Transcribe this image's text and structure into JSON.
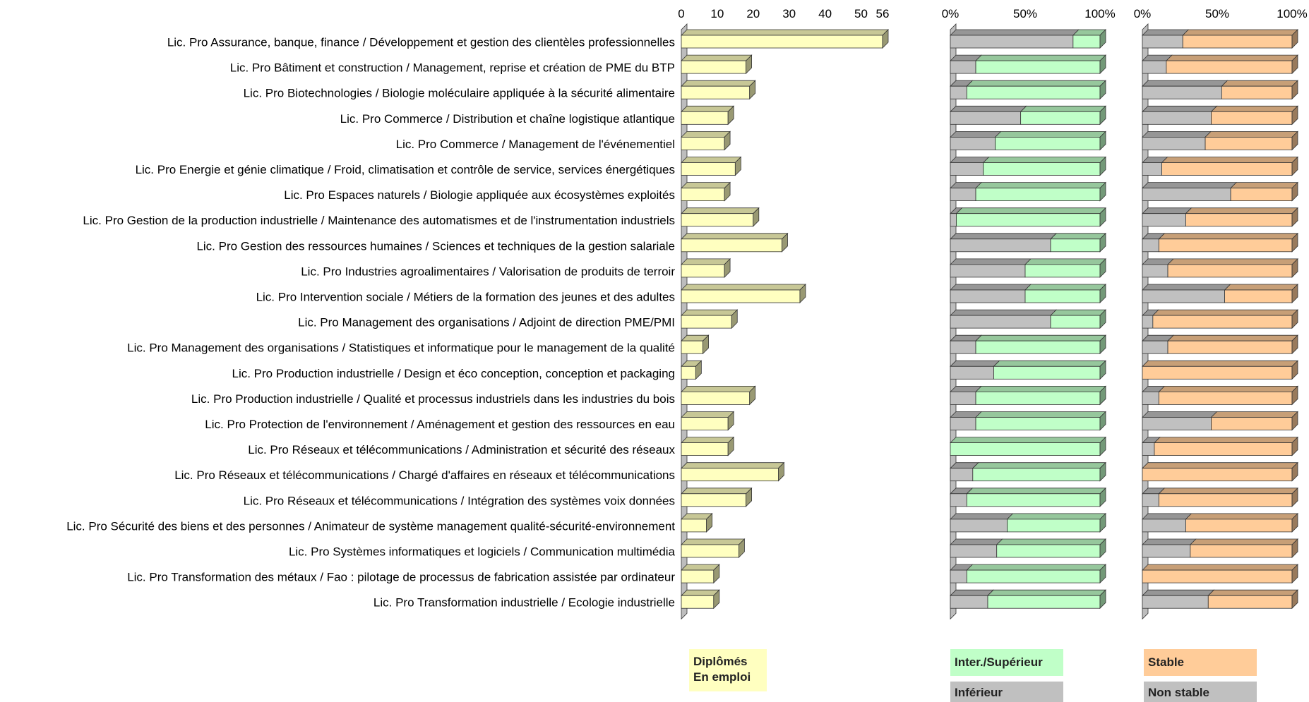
{
  "colors": {
    "employed_bar": "#FFFFC0",
    "inter_superieur": "#C0FFC8",
    "inferieur": "#C0C0C0",
    "stable": "#FFCC99",
    "non_stable": "#C0C0C0",
    "edge": "#333333"
  },
  "legend": {
    "employed_line1": "Diplômés",
    "employed_line2": "En emploi",
    "inter_superieur": "Inter./Supérieur",
    "inferieur": "Inférieur",
    "stable": "Stable",
    "non_stable": "Non stable"
  },
  "chart_data": [
    {
      "type": "bar",
      "orientation": "horizontal",
      "title": "",
      "xlim": [
        0,
        56
      ],
      "x_ticks": [
        "0",
        "10",
        "20",
        "30",
        "40",
        "50",
        "56"
      ],
      "categories": [
        "Lic. Pro Assurance, banque, finance / Développement et gestion des clientèles professionnelles",
        "Lic. Pro Bâtiment et construction / Management, reprise et création de PME du BTP",
        "Lic. Pro Biotechnologies / Biologie moléculaire appliquée à la sécurité alimentaire",
        "Lic. Pro Commerce / Distribution et chaîne logistique atlantique",
        "Lic. Pro Commerce / Management de l'événementiel",
        "Lic. Pro Energie et génie climatique / Froid, climatisation et contrôle de service, services énergétiques",
        "Lic. Pro Espaces naturels / Biologie appliquée aux écosystèmes exploités",
        "Lic. Pro Gestion de la production industrielle / Maintenance des automatismes et de l'instrumentation industriels",
        "Lic. Pro Gestion des ressources humaines / Sciences et techniques de la gestion salariale",
        "Lic. Pro Industries agroalimentaires / Valorisation de produits de terroir",
        "Lic. Pro Intervention sociale / Métiers de la formation des jeunes et des adultes",
        "Lic. Pro Management des organisations / Adjoint de direction PME/PMI",
        "Lic. Pro Management des organisations / Statistiques et informatique pour le management de la qualité",
        "Lic. Pro Production industrielle / Design et éco conception, conception et packaging",
        "Lic. Pro Production industrielle / Qualité et processus industriels dans les industries du bois",
        "Lic. Pro Protection de l'environnement / Aménagement et gestion des ressources en eau",
        "Lic. Pro Réseaux et télécommunications / Administration et sécurité des réseaux",
        "Lic. Pro Réseaux et télécommunications / Chargé d'affaires en réseaux et télécommunications",
        "Lic. Pro Réseaux et télécommunications / Intégration des systèmes voix données",
        "Lic. Pro Sécurité des biens et des personnes / Animateur de système management qualité-sécurité-environnement",
        "Lic. Pro Systèmes informatiques et logiciels / Communication multimédia",
        "Lic. Pro Transformation des métaux / Fao : pilotage de processus de fabrication assistée par ordinateur",
        "Lic. Pro Transformation industrielle / Ecologie industrielle"
      ],
      "series": [
        {
          "name": "Diplômés En emploi",
          "values": [
            56,
            18,
            19,
            13,
            12,
            15,
            12,
            20,
            28,
            12,
            33,
            14,
            6,
            4,
            19,
            13,
            13,
            27,
            18,
            7,
            16,
            9,
            9
          ]
        }
      ]
    },
    {
      "type": "bar",
      "orientation": "horizontal",
      "stacked": "percent",
      "title": "",
      "xlim": [
        0,
        100
      ],
      "x_ticks": [
        "0%",
        "50%",
        "100%"
      ],
      "series": [
        {
          "name": "Inférieur",
          "values": [
            82,
            17,
            11,
            47,
            30,
            22,
            17,
            4,
            67,
            50,
            50,
            67,
            17,
            29,
            17,
            17,
            0,
            15,
            11,
            38,
            31,
            11,
            25
          ]
        },
        {
          "name": "Inter./Supérieur",
          "values": [
            18,
            83,
            89,
            53,
            70,
            78,
            83,
            96,
            33,
            50,
            50,
            33,
            83,
            71,
            83,
            83,
            100,
            85,
            89,
            62,
            69,
            89,
            75
          ]
        }
      ]
    },
    {
      "type": "bar",
      "orientation": "horizontal",
      "stacked": "percent",
      "title": "",
      "xlim": [
        0,
        100
      ],
      "x_ticks": [
        "0%",
        "50%",
        "100%"
      ],
      "series": [
        {
          "name": "Non stable",
          "values": [
            27,
            16,
            53,
            46,
            42,
            13,
            59,
            29,
            11,
            17,
            55,
            7,
            17,
            0,
            11,
            46,
            8,
            0,
            11,
            29,
            32,
            0,
            44
          ]
        },
        {
          "name": "Stable",
          "values": [
            73,
            84,
            47,
            54,
            58,
            87,
            41,
            71,
            89,
            83,
            45,
            93,
            83,
            100,
            89,
            54,
            92,
            100,
            89,
            71,
            68,
            100,
            56
          ]
        }
      ]
    }
  ]
}
